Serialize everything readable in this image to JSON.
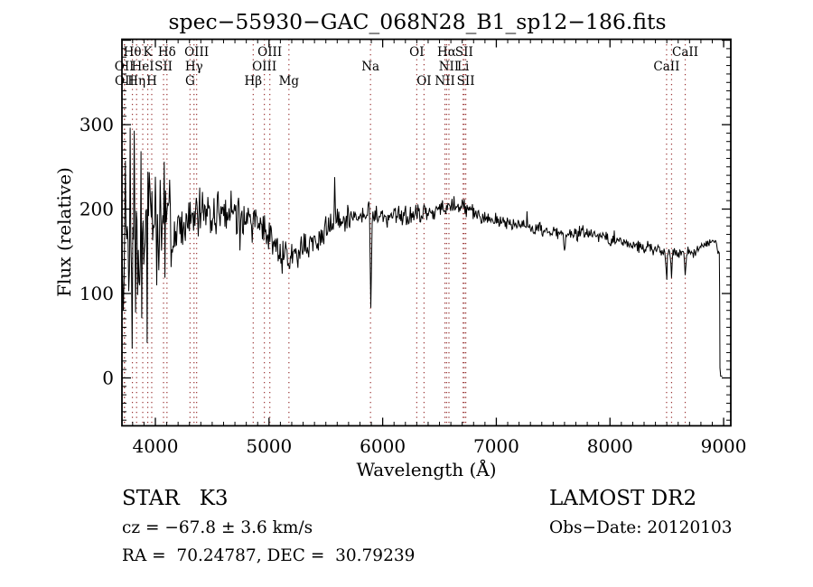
{
  "title": "spec−55930−GAC_068N28_B1_sp12−186.fits",
  "footer": {
    "class_line": "STAR   K3",
    "survey": "LAMOST DR2",
    "cz_line": "cz = −67.8 ± 3.6 km/s",
    "obs_line": "Obs−Date: 20120103",
    "radec_line": "RA =  70.24787, DEC =  30.79239"
  },
  "colors": {
    "spectrum_line": "#000000",
    "ref_line": "#993333",
    "axis": "#000000",
    "background": "#ffffff"
  },
  "chart_data": {
    "type": "line",
    "title": "spec−55930−GAC_068N28_B1_sp12−186.fits",
    "xlabel": "Wavelength (Å)",
    "ylabel": "Flux (relative)",
    "series_name": "spectrum",
    "xlim": [
      3706,
      9063
    ],
    "ylim": [
      -56.7,
      401.1
    ],
    "x_major_ticks": [
      4000,
      5000,
      6000,
      7000,
      8000,
      9000
    ],
    "x_tick_labels": [
      "4000",
      "5000",
      "6000",
      "7000",
      "8000",
      "9000"
    ],
    "x_minor_step": 100,
    "y_major_ticks": [
      0,
      100,
      200,
      300
    ],
    "y_tick_labels": [
      "0",
      "100",
      "200",
      "300"
    ],
    "y_minor_step": 10,
    "grid": false,
    "legend": null,
    "spectral_lines": [
      {
        "label": "Hθ",
        "wavelength": 3798,
        "row": 1
      },
      {
        "label": "K",
        "wavelength": 3933,
        "row": 1
      },
      {
        "label": "Hδ",
        "wavelength": 4102,
        "row": 1
      },
      {
        "label": "OIII",
        "wavelength": 4363,
        "row": 1
      },
      {
        "label": "OIII",
        "wavelength": 5007,
        "row": 1
      },
      {
        "label": "OI",
        "wavelength": 6300,
        "row": 1
      },
      {
        "label": "Hα",
        "wavelength": 6563,
        "row": 1
      },
      {
        "label": "SII",
        "wavelength": 6717,
        "row": 1
      },
      {
        "label": "CaII",
        "wavelength": 8662,
        "row": 1
      },
      {
        "label": "OII",
        "wavelength": 3727,
        "row": 2
      },
      {
        "label": "HeI",
        "wavelength": 3889,
        "row": 2
      },
      {
        "label": "SII",
        "wavelength": 4072,
        "row": 2
      },
      {
        "label": "Hγ",
        "wavelength": 4340,
        "row": 2
      },
      {
        "label": "OIII",
        "wavelength": 4959,
        "row": 2
      },
      {
        "label": "Na",
        "wavelength": 5893,
        "row": 2
      },
      {
        "label": "NII",
        "wavelength": 6583,
        "row": 2
      },
      {
        "label": "Li",
        "wavelength": 6708,
        "row": 2
      },
      {
        "label": "CaII",
        "wavelength": 8498,
        "row": 2
      },
      {
        "label": "OII",
        "wavelength": 3729,
        "row": 3
      },
      {
        "label": "Hη",
        "wavelength": 3835,
        "row": 3
      },
      {
        "label": "H",
        "wavelength": 3968,
        "row": 3
      },
      {
        "label": "G",
        "wavelength": 4305,
        "row": 3
      },
      {
        "label": "Hβ",
        "wavelength": 4861,
        "row": 3
      },
      {
        "label": "Mg",
        "wavelength": 5175,
        "row": 3
      },
      {
        "label": "OI",
        "wavelength": 6364,
        "row": 3
      },
      {
        "label": "NII",
        "wavelength": 6548,
        "row": 3
      },
      {
        "label": "SII",
        "wavelength": 6731,
        "row": 3
      }
    ],
    "ref_line_wavelengths": [
      3727,
      3729,
      3798,
      3835,
      3889,
      3933,
      3968,
      4072,
      4102,
      4305,
      4340,
      4363,
      4861,
      4959,
      5007,
      5175,
      5893,
      6300,
      6364,
      6548,
      6563,
      6583,
      6708,
      6717,
      6731,
      8498,
      8542,
      8662
    ],
    "spectrum": {
      "sample_step": 6,
      "noise_seed": 20120103,
      "clamp": [
        -55,
        396
      ],
      "continuum": [
        [
          3706,
          140
        ],
        [
          3760,
          158
        ],
        [
          3820,
          150
        ],
        [
          3880,
          155
        ],
        [
          3940,
          162
        ],
        [
          4000,
          172
        ],
        [
          4060,
          185
        ],
        [
          4120,
          188
        ],
        [
          4180,
          178
        ],
        [
          4240,
          180
        ],
        [
          4300,
          186
        ],
        [
          4360,
          190
        ],
        [
          4420,
          192
        ],
        [
          4480,
          188
        ],
        [
          4540,
          190
        ],
        [
          4620,
          194
        ],
        [
          4700,
          193
        ],
        [
          4780,
          191
        ],
        [
          4860,
          186
        ],
        [
          4940,
          178
        ],
        [
          5000,
          170
        ],
        [
          5060,
          158
        ],
        [
          5120,
          147
        ],
        [
          5180,
          144
        ],
        [
          5240,
          149
        ],
        [
          5300,
          153
        ],
        [
          5360,
          159
        ],
        [
          5420,
          166
        ],
        [
          5480,
          173
        ],
        [
          5540,
          179
        ],
        [
          5620,
          184
        ],
        [
          5700,
          189
        ],
        [
          5780,
          192
        ],
        [
          5860,
          194
        ],
        [
          5940,
          194
        ],
        [
          6020,
          191
        ],
        [
          6100,
          192
        ],
        [
          6180,
          193
        ],
        [
          6260,
          194
        ],
        [
          6340,
          196
        ],
        [
          6420,
          198
        ],
        [
          6500,
          201
        ],
        [
          6580,
          203
        ],
        [
          6660,
          205
        ],
        [
          6740,
          201
        ],
        [
          6820,
          196
        ],
        [
          6900,
          191
        ],
        [
          6980,
          188
        ],
        [
          7060,
          186
        ],
        [
          7140,
          184
        ],
        [
          7220,
          181
        ],
        [
          7300,
          179
        ],
        [
          7380,
          177
        ],
        [
          7460,
          174
        ],
        [
          7540,
          172
        ],
        [
          7620,
          169
        ],
        [
          7700,
          169
        ],
        [
          7780,
          172
        ],
        [
          7860,
          170
        ],
        [
          7940,
          167
        ],
        [
          8020,
          163
        ],
        [
          8100,
          160
        ],
        [
          8180,
          158
        ],
        [
          8260,
          156
        ],
        [
          8340,
          154
        ],
        [
          8420,
          152
        ],
        [
          8500,
          150
        ],
        [
          8580,
          148
        ],
        [
          8660,
          147
        ],
        [
          8740,
          149
        ],
        [
          8820,
          155
        ],
        [
          8880,
          161
        ],
        [
          8930,
          160
        ],
        [
          8958,
          150
        ]
      ],
      "noise_amplitude": [
        [
          3706,
          112
        ],
        [
          3800,
          112
        ],
        [
          3860,
          100
        ],
        [
          3920,
          95
        ],
        [
          3980,
          88
        ],
        [
          4040,
          70
        ],
        [
          4100,
          62
        ],
        [
          4160,
          50
        ],
        [
          4240,
          40
        ],
        [
          4320,
          34
        ],
        [
          4400,
          28
        ],
        [
          4500,
          25
        ],
        [
          4600,
          23
        ],
        [
          4700,
          22
        ],
        [
          4800,
          21
        ],
        [
          4900,
          20
        ],
        [
          5000,
          19
        ],
        [
          5100,
          18
        ],
        [
          5200,
          17
        ],
        [
          5300,
          16
        ],
        [
          5400,
          16
        ],
        [
          5500,
          17
        ],
        [
          5600,
          16
        ],
        [
          5700,
          14
        ],
        [
          5800,
          12
        ],
        [
          5900,
          11
        ],
        [
          6000,
          12
        ],
        [
          6100,
          12
        ],
        [
          6200,
          11
        ],
        [
          6300,
          11
        ],
        [
          6400,
          10
        ],
        [
          6500,
          10
        ],
        [
          6600,
          9
        ],
        [
          6700,
          9
        ],
        [
          6800,
          9
        ],
        [
          6900,
          8
        ],
        [
          7000,
          8
        ],
        [
          7200,
          8
        ],
        [
          7400,
          8
        ],
        [
          7600,
          7
        ],
        [
          7800,
          7
        ],
        [
          8000,
          7
        ],
        [
          8200,
          6
        ],
        [
          8400,
          6
        ],
        [
          8600,
          6
        ],
        [
          8800,
          6
        ],
        [
          8958,
          5
        ]
      ],
      "features": [
        {
          "center": 5577,
          "amplitude": 55,
          "sigma": 3.5
        },
        {
          "center": 5880,
          "amplitude": 40,
          "sigma": 2.5
        },
        {
          "center": 5896,
          "amplitude": -110,
          "sigma": 5.5
        },
        {
          "center": 5175,
          "amplitude": -10,
          "sigma": 9
        },
        {
          "center": 4861,
          "amplitude": -8,
          "sigma": 3
        },
        {
          "center": 4226,
          "amplitude": -15,
          "sigma": 4
        },
        {
          "center": 6563,
          "amplitude": -9,
          "sigma": 3
        },
        {
          "center": 6867,
          "amplitude": -13,
          "sigma": 6
        },
        {
          "center": 7600,
          "amplitude": -27,
          "sigma": 5
        },
        {
          "center": 8498,
          "amplitude": -36,
          "sigma": 4.5
        },
        {
          "center": 8542,
          "amplitude": -26,
          "sigma": 4.5
        },
        {
          "center": 8662,
          "amplitude": -32,
          "sigma": 4.5
        }
      ],
      "end_tail": [
        [
          8962,
          148
        ],
        [
          8965,
          95
        ],
        [
          8968,
          12
        ],
        [
          8974,
          2
        ],
        [
          8988,
          2
        ]
      ]
    }
  }
}
